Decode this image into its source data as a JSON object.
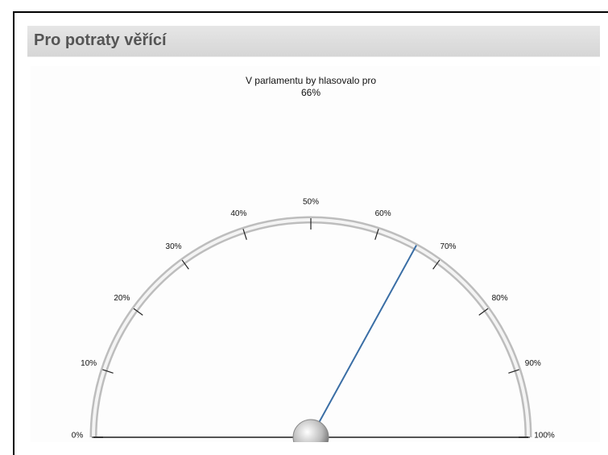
{
  "header": {
    "title": "Pro potraty věřící"
  },
  "chart_data": {
    "type": "gauge",
    "title": "V parlamentu by hlasovalo pro",
    "values": [
      66
    ],
    "value_labels": [
      "66%"
    ],
    "color": "#3a6ea5",
    "ylim": [
      0,
      100
    ],
    "yticks": [
      {
        "value": 0,
        "label": "0%"
      },
      {
        "value": 10,
        "label": "10%"
      },
      {
        "value": 20,
        "label": "20%"
      },
      {
        "value": 30,
        "label": "30%"
      },
      {
        "value": 40,
        "label": "40%"
      },
      {
        "value": 50,
        "label": "50%"
      },
      {
        "value": 60,
        "label": "60%"
      },
      {
        "value": 70,
        "label": "70%"
      },
      {
        "value": 80,
        "label": "80%"
      },
      {
        "value": 90,
        "label": "90%"
      },
      {
        "value": 100,
        "label": "100%"
      }
    ]
  }
}
